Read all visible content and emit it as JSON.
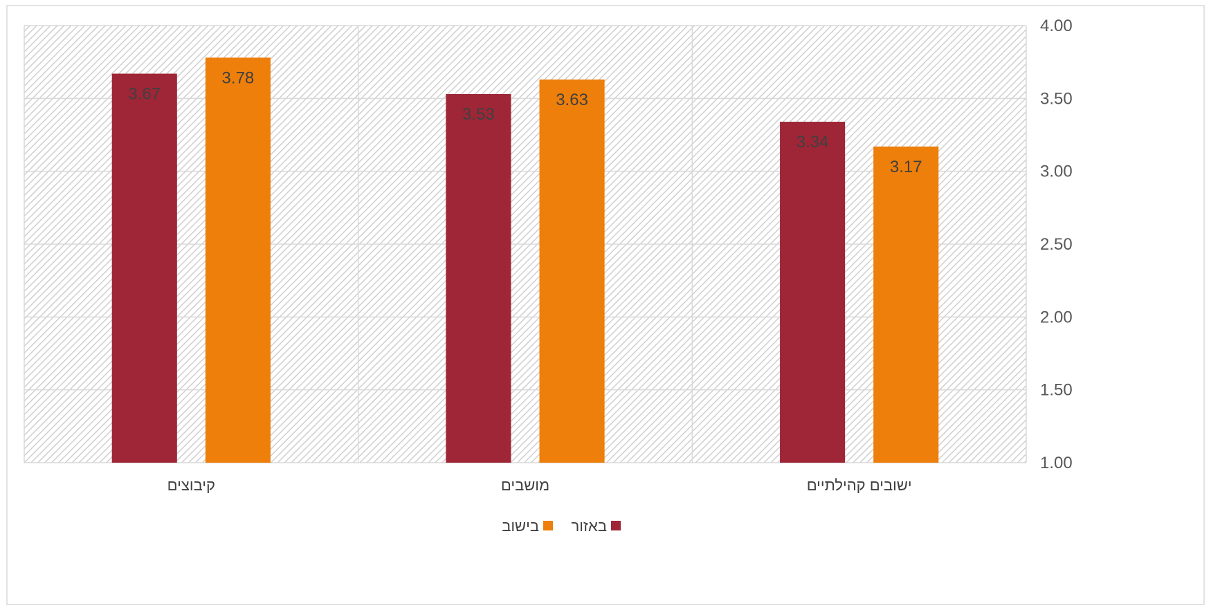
{
  "chart_data": {
    "type": "bar",
    "categories": [
      "ישובים קהילתיים",
      "מושבים",
      "קיבוצים"
    ],
    "series": [
      {
        "name": "באזור",
        "values": [
          3.34,
          3.53,
          3.67
        ],
        "color": "#9E2637"
      },
      {
        "name": "בישוב",
        "values": [
          3.17,
          3.63,
          3.78
        ],
        "color": "#EE7F0A"
      }
    ],
    "ylim": [
      1.0,
      4.0
    ],
    "yticks": [
      "1.00",
      "1.50",
      "2.00",
      "2.50",
      "3.00",
      "3.50",
      "4.00"
    ],
    "y_axis_side": "right",
    "category_order": "right-to-left",
    "grid": true,
    "legend_position": "bottom",
    "plot_background": "hatched light gray"
  }
}
